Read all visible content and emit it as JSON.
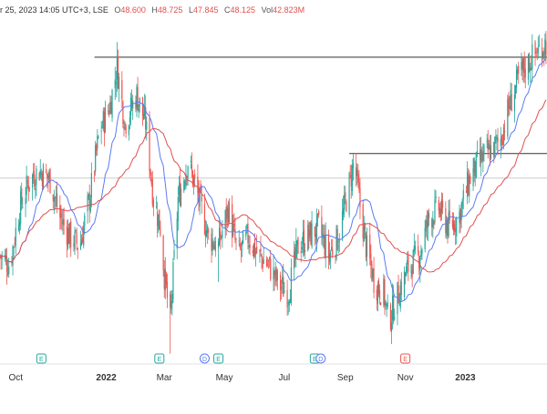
{
  "header": {
    "date_text": "r 25, 2023 14:05 UTC+3",
    "exchange": ", LSE",
    "open_label": "O",
    "open_value": "48.600",
    "high_label": "H",
    "high_value": "48.725",
    "low_label": "L",
    "low_value": "47.845",
    "close_label": "C",
    "close_value": "48.125",
    "volume_label": "Vol",
    "volume_value": "42.823M"
  },
  "colors": {
    "up": "#26a69a",
    "down": "#ef5350",
    "ma_fast": "#5b7cf2",
    "ma_slow": "#e0504f",
    "level": "#333333",
    "axis_text": "#333333"
  },
  "chart_data": {
    "type": "candlestick",
    "period_note": "approx. Sep 2021 – Mar 2023, price scale (unlabeled)",
    "ylim": [
      36.5,
      53.6
    ],
    "x_tick_labels": [
      "Oct",
      "2022",
      "Mar",
      "May",
      "Jul",
      "Sep",
      "Nov",
      "2023"
    ],
    "x_tick_dates": [
      "2021-10-01",
      "2022-01-01",
      "2022-03-01",
      "2022-05-01",
      "2022-07-01",
      "2022-09-01",
      "2022-11-01",
      "2023-01-01"
    ],
    "bold_ticks": [
      "2022",
      "2023"
    ],
    "start_date": "2021-09-15",
    "end_date": "2023-03-25",
    "price_anchors": [
      [
        "2021-09-15",
        42.0
      ],
      [
        "2021-09-25",
        41.5
      ],
      [
        "2021-10-05",
        44.5
      ],
      [
        "2021-10-15",
        46.0
      ],
      [
        "2021-10-25",
        46.5
      ],
      [
        "2021-11-05",
        46.0
      ],
      [
        "2021-11-15",
        44.0
      ],
      [
        "2021-11-25",
        43.0
      ],
      [
        "2021-12-05",
        42.5
      ],
      [
        "2021-12-15",
        45.0
      ],
      [
        "2021-12-25",
        48.5
      ],
      [
        "2022-01-05",
        50.0
      ],
      [
        "2022-01-12",
        52.0
      ],
      [
        "2022-01-20",
        49.0
      ],
      [
        "2022-02-01",
        50.5
      ],
      [
        "2022-02-10",
        49.0
      ],
      [
        "2022-02-18",
        45.0
      ],
      [
        "2022-02-25",
        43.5
      ],
      [
        "2022-03-01",
        41.0
      ],
      [
        "2022-03-07",
        38.5
      ],
      [
        "2022-03-15",
        45.0
      ],
      [
        "2022-03-25",
        47.0
      ],
      [
        "2022-04-05",
        45.0
      ],
      [
        "2022-04-15",
        43.0
      ],
      [
        "2022-04-25",
        42.5
      ],
      [
        "2022-05-05",
        44.5
      ],
      [
        "2022-05-15",
        42.0
      ],
      [
        "2022-05-25",
        43.0
      ],
      [
        "2022-06-05",
        42.0
      ],
      [
        "2022-06-15",
        41.5
      ],
      [
        "2022-06-25",
        40.5
      ],
      [
        "2022-07-05",
        40.0
      ],
      [
        "2022-07-15",
        42.5
      ],
      [
        "2022-07-25",
        43.0
      ],
      [
        "2022-08-05",
        43.5
      ],
      [
        "2022-08-15",
        42.0
      ],
      [
        "2022-08-25",
        43.0
      ],
      [
        "2022-09-02",
        45.0
      ],
      [
        "2022-09-10",
        47.0
      ],
      [
        "2022-09-15",
        45.0
      ],
      [
        "2022-09-22",
        42.5
      ],
      [
        "2022-10-01",
        40.5
      ],
      [
        "2022-10-10",
        40.0
      ],
      [
        "2022-10-15",
        38.5
      ],
      [
        "2022-10-25",
        40.0
      ],
      [
        "2022-11-05",
        41.5
      ],
      [
        "2022-11-15",
        42.0
      ],
      [
        "2022-11-25",
        44.0
      ],
      [
        "2022-12-05",
        44.5
      ],
      [
        "2022-12-15",
        43.5
      ],
      [
        "2022-12-25",
        44.0
      ],
      [
        "2023-01-05",
        46.0
      ],
      [
        "2023-01-15",
        47.0
      ],
      [
        "2023-01-25",
        47.5
      ],
      [
        "2023-02-05",
        48.0
      ],
      [
        "2023-02-15",
        50.0
      ],
      [
        "2023-02-25",
        51.5
      ],
      [
        "2023-03-10",
        52.5
      ],
      [
        "2023-03-25",
        53.3
      ]
    ],
    "horizontal_levels": [
      {
        "value": 52.5,
        "from": "2021-12-20",
        "to": "2023-03-25",
        "color": "#333333"
      },
      {
        "value": 47.4,
        "from": "2022-09-05",
        "to": "2023-03-25",
        "color": "#333333"
      },
      {
        "value": 46.1,
        "from": "2021-09-15",
        "to": "2023-03-25",
        "color": "#cccccc"
      }
    ],
    "moving_averages": [
      {
        "period": 20,
        "color": "#5b7cf2"
      },
      {
        "period": 50,
        "color": "#e0504f"
      }
    ],
    "events": [
      {
        "date": "2021-10-27",
        "type": "E"
      },
      {
        "date": "2022-02-24",
        "type": "E"
      },
      {
        "date": "2022-04-11",
        "type": "D"
      },
      {
        "date": "2022-04-25",
        "type": "E"
      },
      {
        "date": "2022-08-01",
        "type": "E"
      },
      {
        "date": "2022-08-07",
        "type": "D"
      },
      {
        "date": "2022-11-01",
        "type": "E",
        "upcoming": true
      }
    ]
  }
}
